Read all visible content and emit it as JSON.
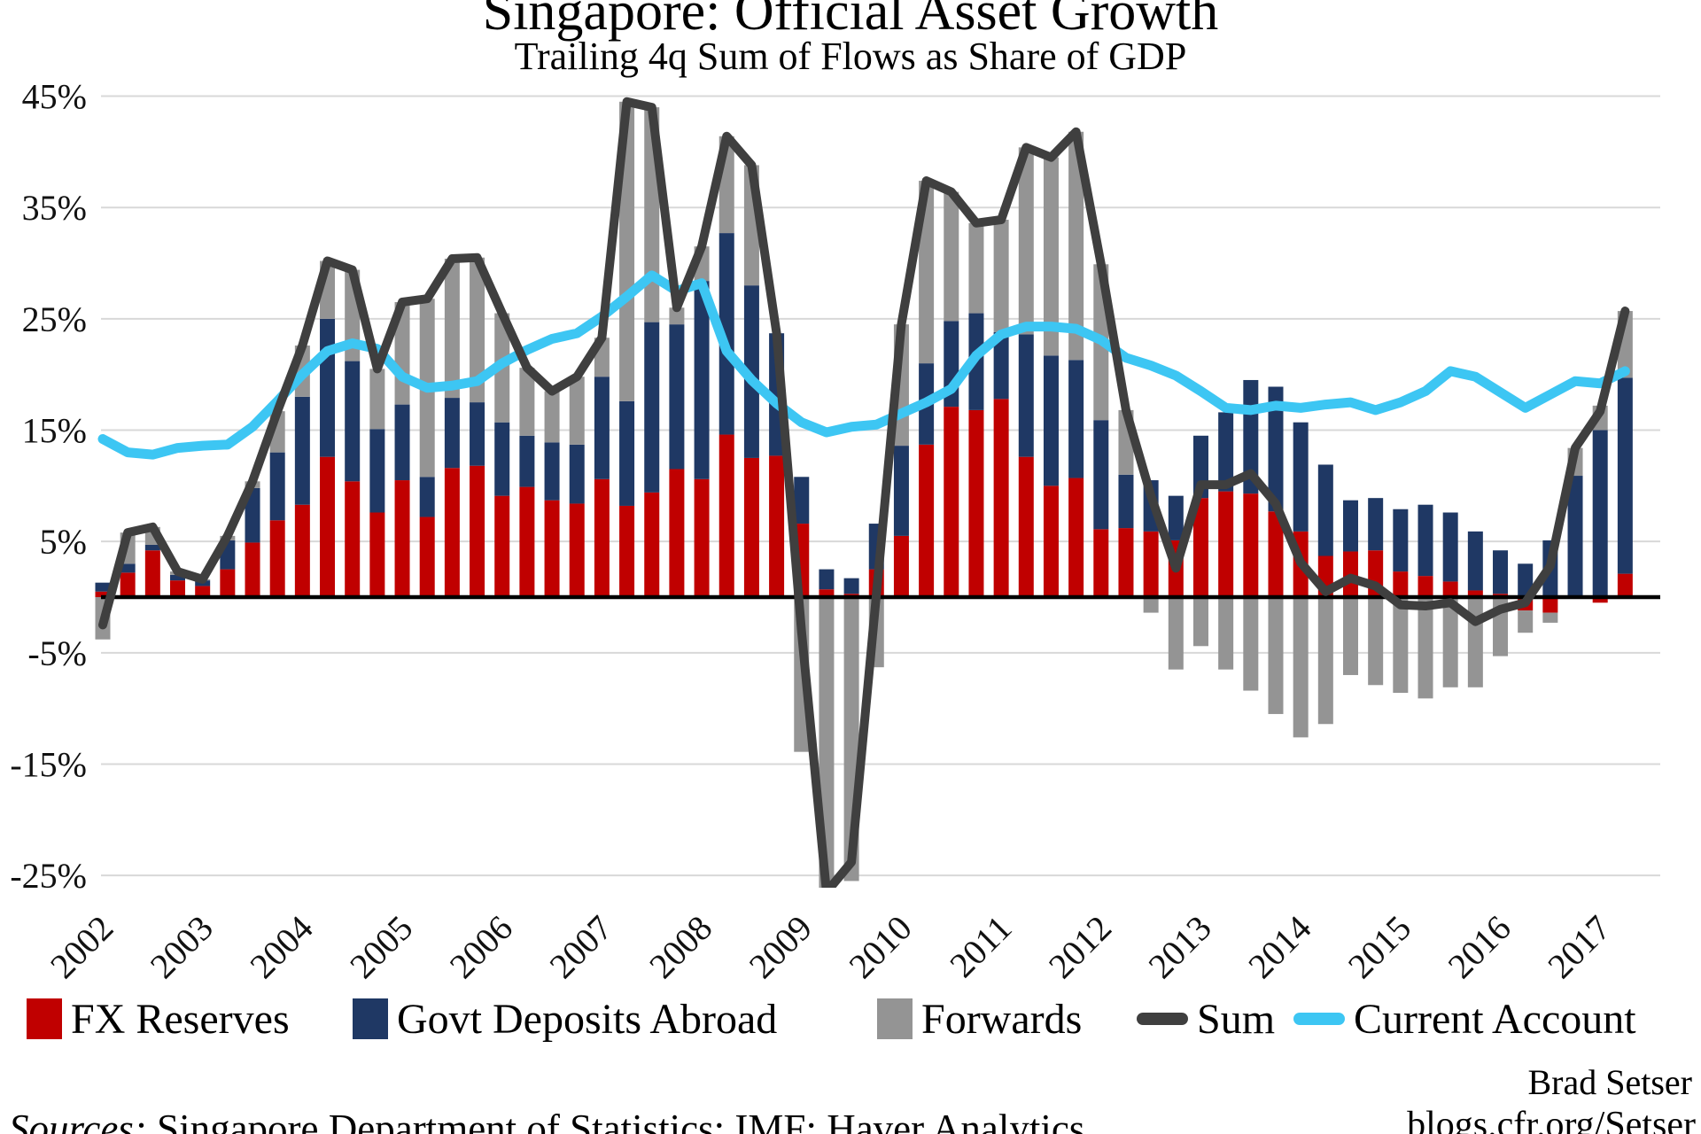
{
  "title": "Singapore: Official Asset Growth",
  "subtitle": "Trailing 4q Sum of Flows as Share of GDP",
  "footer": {
    "author": "Brad Setser",
    "site": "blogs.cfr.org/Setser",
    "sources_prefix": "Sources:",
    "sources_rest": " Singapore Department of Statistics; IMF; Haver Analytics."
  },
  "legend": [
    {
      "label": "FX Reserves",
      "color": "#c00000",
      "type": "box"
    },
    {
      "label": "Govt Deposits Abroad",
      "color": "#1f3864",
      "type": "box"
    },
    {
      "label": "Forwards",
      "color": "#949494",
      "type": "box"
    },
    {
      "label": "Sum",
      "color": "#3f3f3f",
      "type": "line"
    },
    {
      "label": "Current Account",
      "color": "#3dc6f3",
      "type": "line"
    }
  ],
  "chart_data": {
    "type": "bar",
    "subtype": "stacked-bars-with-lines",
    "frequency": "quarterly",
    "start": "2002Q1",
    "end": "2017Q2",
    "categories": [
      "2002",
      "2003",
      "2004",
      "2005",
      "2006",
      "2007",
      "2008",
      "2009",
      "2010",
      "2011",
      "2012",
      "2013",
      "2014",
      "2015",
      "2016",
      "2017"
    ],
    "y_ticks": [
      {
        "value": 45,
        "label": "45%"
      },
      {
        "value": 35,
        "label": "35%"
      },
      {
        "value": 25,
        "label": "25%"
      },
      {
        "value": 15,
        "label": "15%"
      },
      {
        "value": 5,
        "label": "5%"
      },
      {
        "value": -5,
        "label": "-5%"
      },
      {
        "value": -15,
        "label": "-15%"
      },
      {
        "value": -25,
        "label": "-25%"
      }
    ],
    "ylim": [
      -25,
      45
    ],
    "grid": true,
    "legend_position": "bottom",
    "series": {
      "fx": {
        "name": "FX Reserves",
        "color": "#c00000",
        "values": [
          0.5,
          2.2,
          4.2,
          1.5,
          1.0,
          2.5,
          4.9,
          6.9,
          8.3,
          12.6,
          10.4,
          7.6,
          10.5,
          7.2,
          11.6,
          11.8,
          9.1,
          9.9,
          8.7,
          8.4,
          10.6,
          8.2,
          9.4,
          11.5,
          10.6,
          14.6,
          12.5,
          12.7,
          6.6,
          0.7,
          0.3,
          2.5,
          5.5,
          13.7,
          17.1,
          16.8,
          17.8,
          12.6,
          10.0,
          10.7,
          6.1,
          6.2,
          5.9,
          5.1,
          8.9,
          9.5,
          9.3,
          7.7,
          5.9,
          3.7,
          4.1,
          4.2,
          2.3,
          1.9,
          1.4,
          0.6,
          0.3,
          -1.2,
          -1.4,
          0.0,
          -0.5,
          2.1
        ]
      },
      "govt": {
        "name": "Govt Deposits Abroad",
        "color": "#1f3864",
        "values": [
          0.8,
          0.8,
          0.5,
          0.5,
          0.5,
          2.6,
          4.9,
          6.1,
          9.7,
          12.4,
          10.8,
          7.5,
          6.8,
          3.6,
          6.3,
          5.7,
          6.6,
          4.6,
          5.2,
          5.3,
          9.2,
          9.4,
          15.3,
          13.0,
          17.8,
          18.1,
          15.5,
          11.0,
          4.2,
          1.8,
          1.4,
          4.1,
          8.1,
          7.3,
          7.7,
          8.7,
          6.0,
          11.0,
          11.7,
          10.6,
          9.8,
          4.8,
          4.6,
          4.0,
          5.6,
          7.1,
          10.2,
          11.2,
          9.8,
          8.2,
          4.6,
          4.7,
          5.6,
          6.4,
          6.2,
          5.3,
          3.9,
          3.0,
          5.1,
          10.9,
          15.0,
          17.6
        ]
      },
      "fwd": {
        "name": "Forwards",
        "color": "#949494",
        "values": [
          -3.8,
          2.8,
          1.6,
          0.3,
          0.1,
          0.4,
          0.6,
          3.7,
          4.6,
          5.2,
          8.2,
          5.4,
          9.2,
          16.0,
          12.5,
          13.0,
          9.8,
          6.1,
          4.6,
          6.1,
          3.5,
          26.9,
          19.3,
          1.5,
          3.1,
          8.7,
          10.8,
          0.0,
          -13.9,
          -28.0,
          -25.5,
          -6.3,
          10.9,
          16.4,
          11.6,
          8.1,
          10.1,
          16.8,
          17.8,
          20.5,
          14.0,
          5.8,
          -1.4,
          -6.5,
          -4.4,
          -6.5,
          -8.4,
          -10.5,
          -12.6,
          -11.4,
          -7.0,
          -7.9,
          -8.6,
          -9.1,
          -8.1,
          -8.1,
          -5.3,
          -2.0,
          -0.9,
          2.5,
          2.2,
          6.0
        ]
      }
    },
    "lines": {
      "sum": {
        "name": "Sum",
        "color": "#3f3f3f",
        "values": [
          -2.5,
          5.8,
          6.3,
          2.3,
          1.6,
          5.5,
          10.4,
          16.7,
          22.6,
          30.2,
          29.4,
          20.5,
          26.5,
          26.8,
          30.4,
          30.5,
          25.5,
          20.6,
          18.5,
          19.8,
          23.3,
          44.5,
          44.0,
          26.0,
          31.5,
          41.4,
          38.8,
          23.7,
          -3.1,
          -26.5,
          -23.8,
          0.3,
          24.5,
          37.4,
          36.4,
          33.6,
          33.9,
          40.4,
          39.5,
          41.8,
          29.9,
          16.8,
          9.1,
          2.6,
          10.1,
          10.1,
          11.1,
          8.4,
          3.1,
          0.5,
          1.7,
          1.0,
          -0.7,
          -0.8,
          -0.5,
          -2.2,
          -1.1,
          -0.5,
          2.8,
          13.4,
          16.7,
          25.7
        ]
      },
      "current_account": {
        "name": "Current Account",
        "color": "#3dc6f3",
        "values": [
          14.2,
          13.0,
          12.8,
          13.4,
          13.6,
          13.7,
          15.3,
          17.6,
          20.0,
          22.1,
          22.8,
          22.3,
          19.8,
          18.8,
          19.0,
          19.4,
          21.0,
          22.2,
          23.2,
          23.7,
          25.2,
          27.0,
          28.9,
          27.5,
          28.2,
          22.1,
          19.5,
          17.4,
          15.7,
          14.8,
          15.3,
          15.5,
          16.5,
          17.5,
          18.7,
          21.7,
          23.6,
          24.3,
          24.3,
          24.1,
          23.1,
          21.5,
          20.8,
          19.9,
          18.5,
          17.0,
          16.8,
          17.2,
          17.0,
          17.3,
          17.5,
          16.8,
          17.5,
          18.5,
          20.3,
          19.8,
          18.4,
          17.0,
          18.2,
          19.4,
          19.2,
          20.3
        ]
      }
    }
  }
}
